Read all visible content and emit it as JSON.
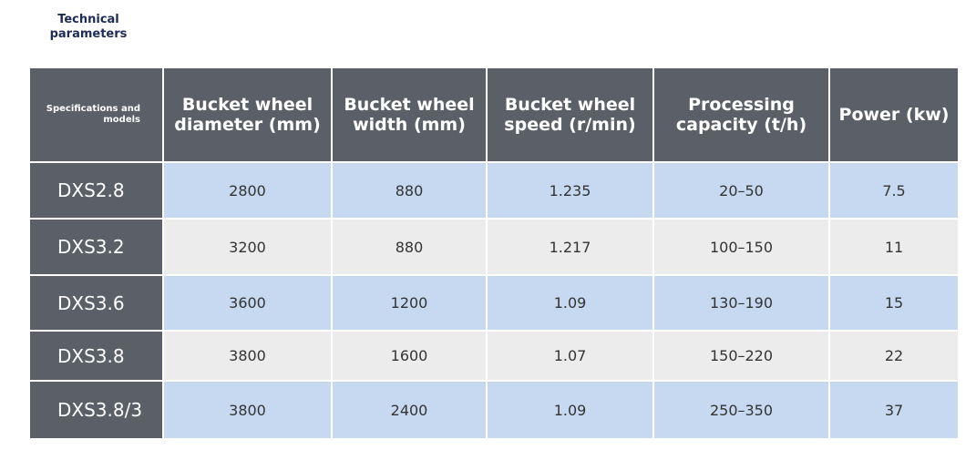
{
  "header": {
    "title": "Technical parameters"
  },
  "table": {
    "columns": [
      "Specifications and models",
      "Bucket wheel diameter (mm)",
      "Bucket wheel width (mm)",
      "Bucket wheel speed (r/min)",
      "Processing capacity (t/h)",
      "Power (kw)"
    ],
    "rows": [
      [
        "DXS2.8",
        "2800",
        "880",
        "1.235",
        "20–50",
        "7.5"
      ],
      [
        "DXS3.2",
        "3200",
        "880",
        "1.217",
        "100–150",
        "11"
      ],
      [
        "DXS3.6",
        "3600",
        "1200",
        "1.09",
        "130–190",
        "15"
      ],
      [
        "DXS3.8",
        "3800",
        "1600",
        "1.07",
        "150–220",
        "22"
      ],
      [
        "DXS3.8/3",
        "3800",
        "2400",
        "1.09",
        "250–350",
        "37"
      ]
    ]
  }
}
